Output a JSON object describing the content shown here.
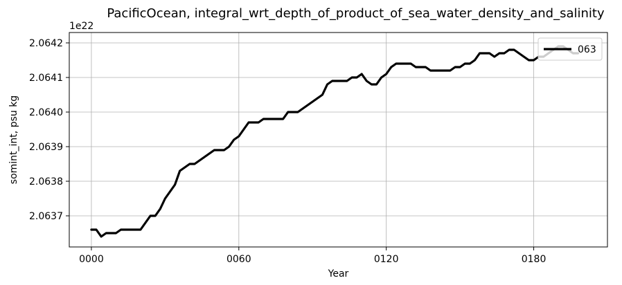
{
  "chart_data": {
    "type": "line",
    "title": "PacificOcean, integral_wrt_depth_of_product_of_sea_water_density_and_salinity",
    "xlabel": "Year",
    "ylabel": "somint_int, psu kg",
    "y_offset_text": "1e22",
    "xlim": [
      -9,
      210
    ],
    "ylim": [
      2.06361,
      2.06423
    ],
    "x_ticks": [
      0,
      60,
      120,
      180
    ],
    "x_tick_labels": [
      "0000",
      "0060",
      "0120",
      "0180"
    ],
    "y_ticks": [
      2.0637,
      2.0638,
      2.0639,
      2.064,
      2.0641,
      2.0642
    ],
    "y_tick_labels": [
      "2.0637",
      "2.0638",
      "2.0639",
      "2.0640",
      "2.0641",
      "2.0642"
    ],
    "grid": true,
    "legend_position": "upper right",
    "series": [
      {
        "name": "063",
        "color": "#000000",
        "x": [
          0,
          2,
          4,
          6,
          8,
          10,
          12,
          14,
          16,
          18,
          20,
          22,
          24,
          26,
          28,
          30,
          32,
          34,
          36,
          38,
          40,
          42,
          44,
          46,
          48,
          50,
          52,
          54,
          56,
          58,
          60,
          62,
          64,
          66,
          68,
          70,
          72,
          74,
          76,
          78,
          80,
          82,
          84,
          86,
          88,
          90,
          92,
          94,
          96,
          98,
          100,
          102,
          104,
          106,
          108,
          110,
          112,
          114,
          116,
          118,
          120,
          122,
          124,
          126,
          128,
          130,
          132,
          134,
          136,
          138,
          140,
          142,
          144,
          146,
          148,
          150,
          152,
          154,
          156,
          158,
          160,
          162,
          164,
          166,
          168,
          170,
          172,
          174,
          176,
          178,
          180,
          182,
          184,
          186,
          188,
          190,
          192,
          194,
          196,
          198
        ],
        "y": [
          2.06366,
          2.06366,
          2.06364,
          2.06365,
          2.06365,
          2.06365,
          2.06366,
          2.06366,
          2.06366,
          2.06366,
          2.06366,
          2.06368,
          2.0637,
          2.0637,
          2.06372,
          2.06375,
          2.06377,
          2.06379,
          2.06383,
          2.06384,
          2.06385,
          2.06385,
          2.06386,
          2.06387,
          2.06388,
          2.06389,
          2.06389,
          2.06389,
          2.0639,
          2.06392,
          2.06393,
          2.06395,
          2.06397,
          2.06397,
          2.06397,
          2.06398,
          2.06398,
          2.06398,
          2.06398,
          2.06398,
          2.064,
          2.064,
          2.064,
          2.06401,
          2.06402,
          2.06403,
          2.06404,
          2.06405,
          2.06408,
          2.06409,
          2.06409,
          2.06409,
          2.06409,
          2.0641,
          2.0641,
          2.06411,
          2.06409,
          2.06408,
          2.06408,
          2.0641,
          2.06411,
          2.06413,
          2.06414,
          2.06414,
          2.06414,
          2.06414,
          2.06413,
          2.06413,
          2.06413,
          2.06412,
          2.06412,
          2.06412,
          2.06412,
          2.06412,
          2.06413,
          2.06413,
          2.06414,
          2.06414,
          2.06415,
          2.06417,
          2.06417,
          2.06417,
          2.06416,
          2.06417,
          2.06417,
          2.06418,
          2.06418,
          2.06417,
          2.06416,
          2.06415,
          2.06415,
          2.06416,
          2.06416,
          2.06417,
          2.06418,
          2.06419,
          2.06419,
          2.06418,
          2.06417,
          2.06417
        ]
      }
    ]
  }
}
